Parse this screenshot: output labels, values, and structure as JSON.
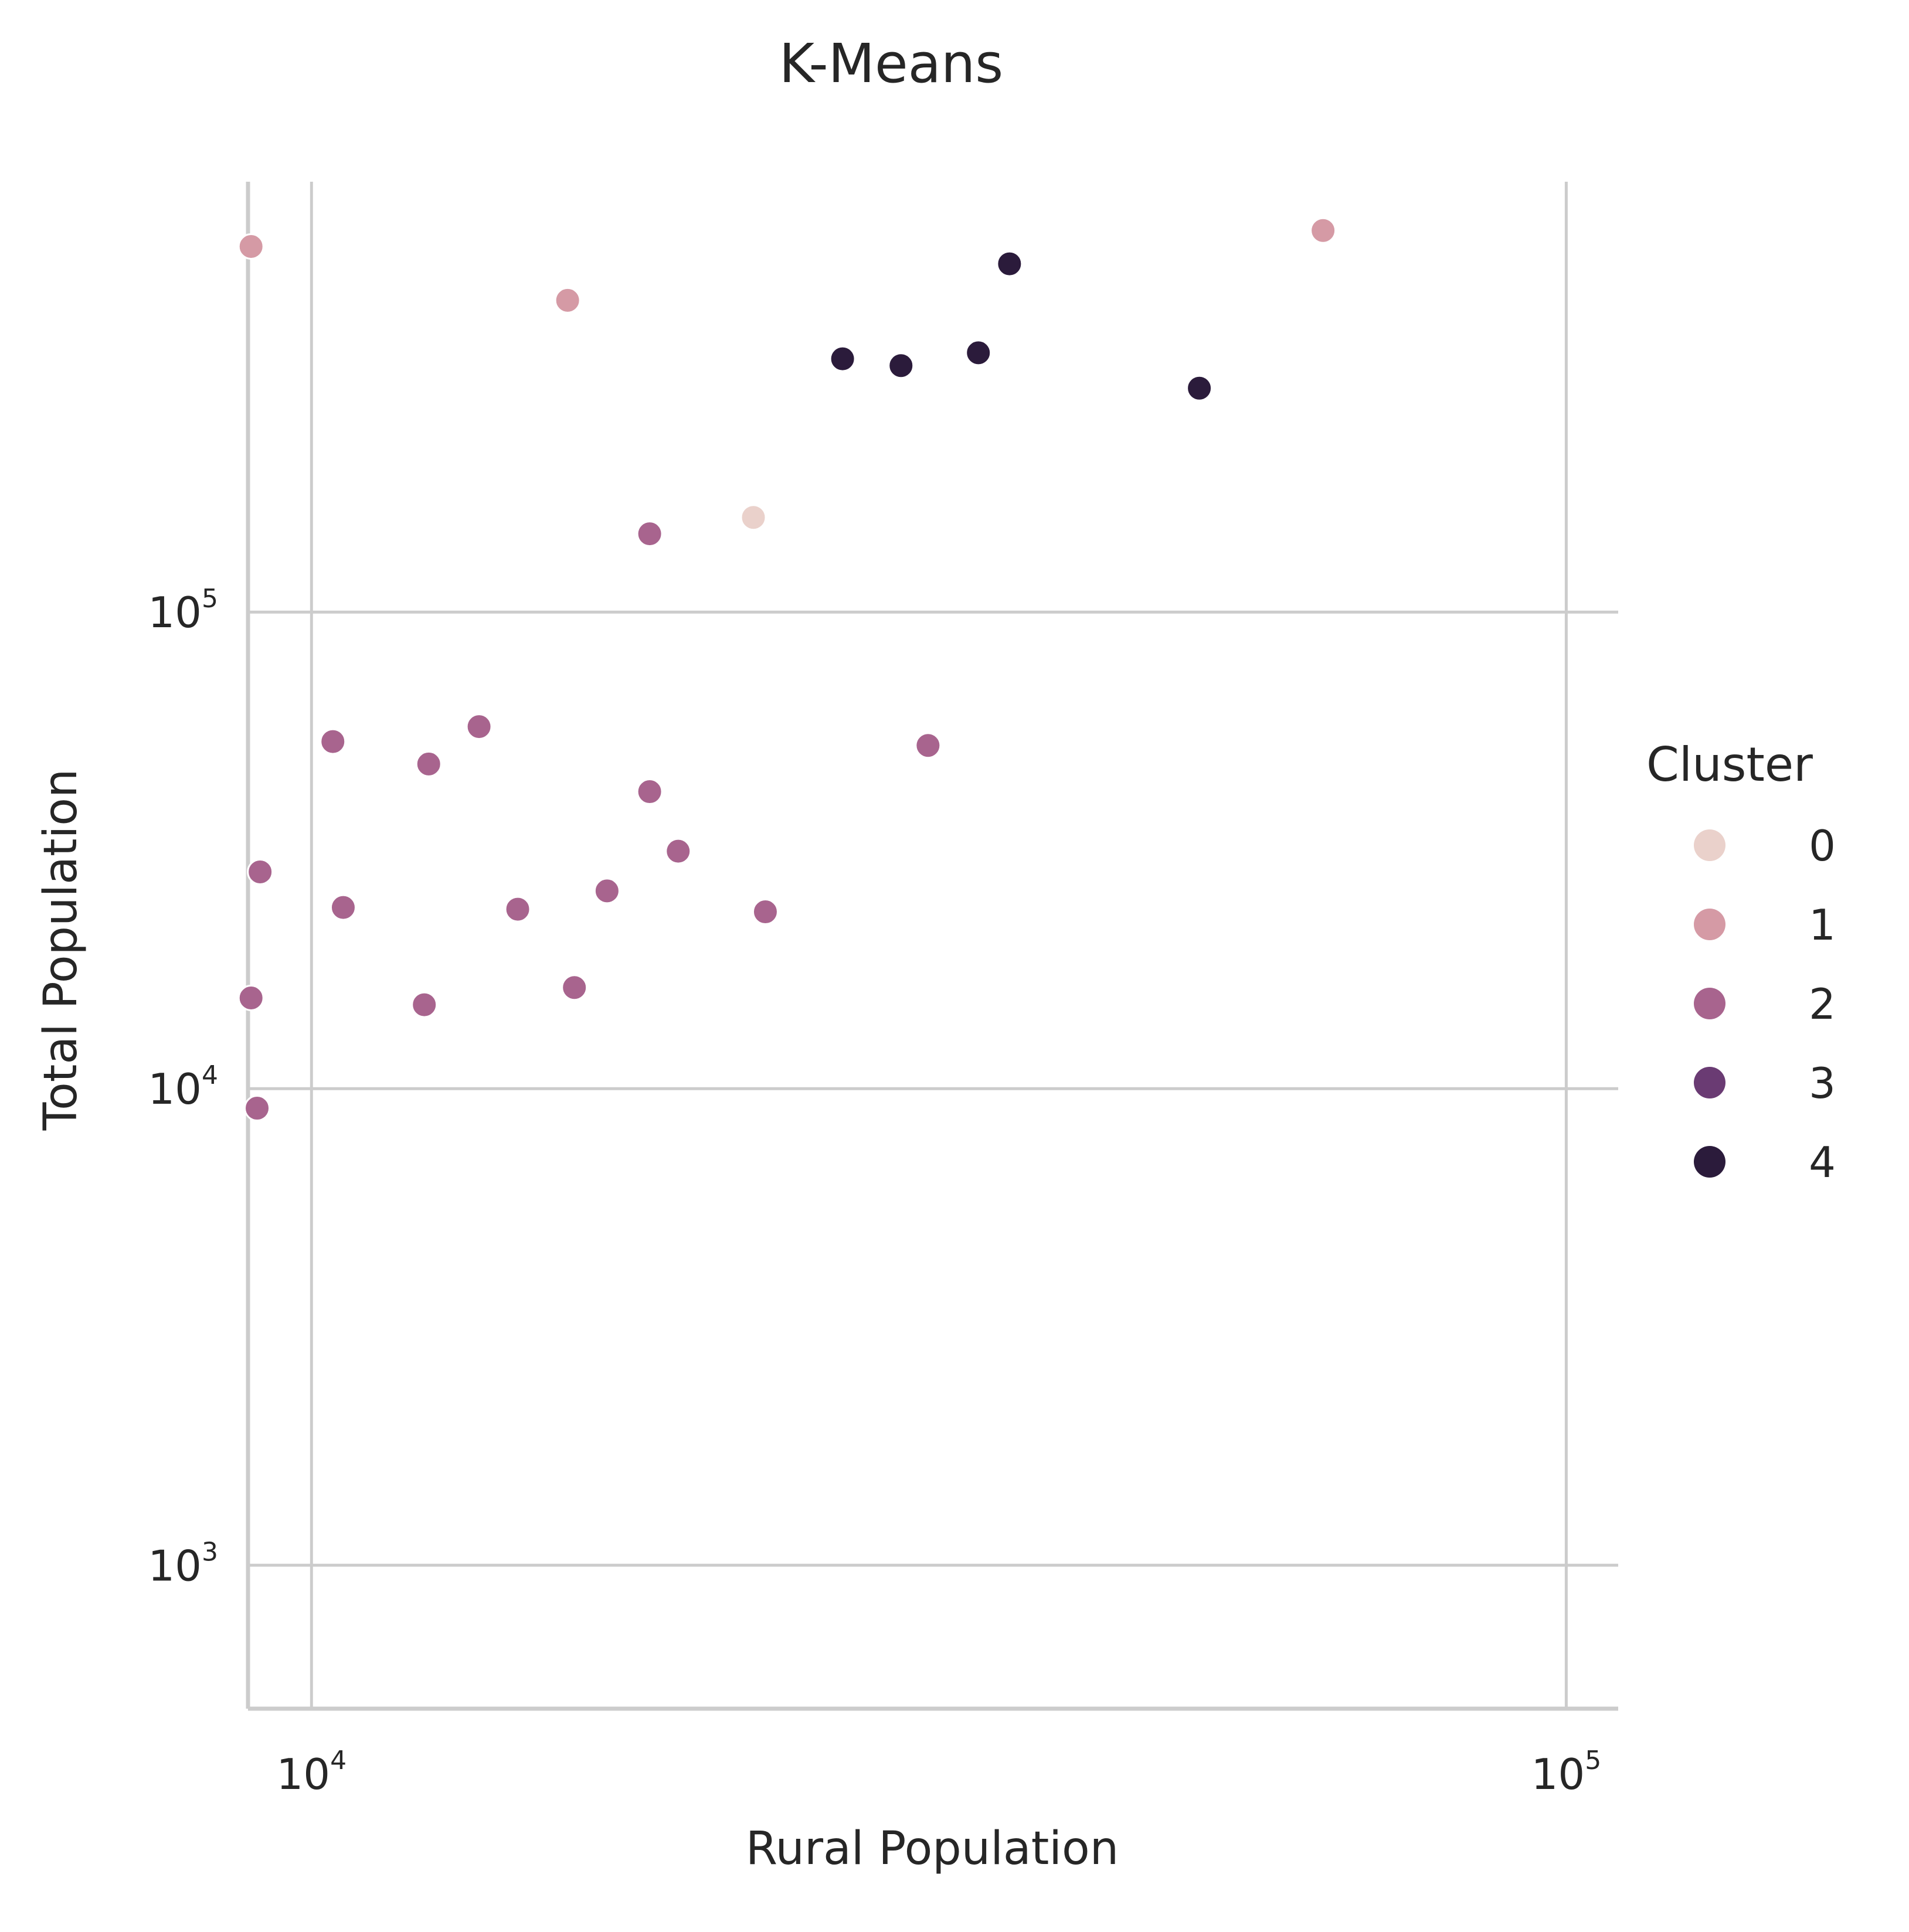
{
  "chart_data": {
    "type": "scatter",
    "title": "K-Means",
    "xlabel": "Rural Population",
    "ylabel": "Total Population",
    "xscale": "log",
    "yscale": "log",
    "xlim": [
      8900,
      110000
    ],
    "ylim": [
      500,
      800000
    ],
    "grid": true,
    "x_ticks": [
      {
        "value": 10000,
        "base": "10",
        "exp": "4"
      },
      {
        "value": 100000,
        "base": "10",
        "exp": "5"
      }
    ],
    "y_ticks": [
      {
        "value": 1000,
        "base": "10",
        "exp": "3"
      },
      {
        "value": 10000,
        "base": "10",
        "exp": "4"
      },
      {
        "value": 100000,
        "base": "10",
        "exp": "5"
      }
    ],
    "legend": {
      "title": "Cluster",
      "placement": "right",
      "entries": [
        {
          "label": "0",
          "color": "#ead1cb"
        },
        {
          "label": "1",
          "color": "#d59aa5"
        },
        {
          "label": "2",
          "color": "#a8648e"
        },
        {
          "label": "3",
          "color": "#6a3b73"
        },
        {
          "label": "4",
          "color": "#2b1b3b"
        }
      ]
    },
    "points": [
      {
        "x": 8950,
        "y": 585000,
        "cluster": "1"
      },
      {
        "x": 16000,
        "y": 451000,
        "cluster": "1"
      },
      {
        "x": 64000,
        "y": 632000,
        "cluster": "1"
      },
      {
        "x": 22500,
        "y": 158000,
        "cluster": "0"
      },
      {
        "x": 36000,
        "y": 538000,
        "cluster": "4"
      },
      {
        "x": 26500,
        "y": 340000,
        "cluster": "4"
      },
      {
        "x": 29500,
        "y": 329000,
        "cluster": "4"
      },
      {
        "x": 34000,
        "y": 350000,
        "cluster": "4"
      },
      {
        "x": 51000,
        "y": 295000,
        "cluster": "4"
      },
      {
        "x": 18600,
        "y": 146000,
        "cluster": "2"
      },
      {
        "x": 10400,
        "y": 53500,
        "cluster": "2"
      },
      {
        "x": 12400,
        "y": 48000,
        "cluster": "2"
      },
      {
        "x": 13600,
        "y": 57500,
        "cluster": "2"
      },
      {
        "x": 31000,
        "y": 52500,
        "cluster": "2"
      },
      {
        "x": 18600,
        "y": 42000,
        "cluster": "2"
      },
      {
        "x": 19600,
        "y": 31500,
        "cluster": "2"
      },
      {
        "x": 9100,
        "y": 28500,
        "cluster": "2"
      },
      {
        "x": 10600,
        "y": 24000,
        "cluster": "2"
      },
      {
        "x": 14600,
        "y": 23800,
        "cluster": "2"
      },
      {
        "x": 17200,
        "y": 26000,
        "cluster": "2"
      },
      {
        "x": 23000,
        "y": 23500,
        "cluster": "2"
      },
      {
        "x": 8950,
        "y": 15500,
        "cluster": "2"
      },
      {
        "x": 12300,
        "y": 15000,
        "cluster": "2"
      },
      {
        "x": 16200,
        "y": 16300,
        "cluster": "2"
      },
      {
        "x": 9050,
        "y": 9100,
        "cluster": "2"
      }
    ]
  }
}
